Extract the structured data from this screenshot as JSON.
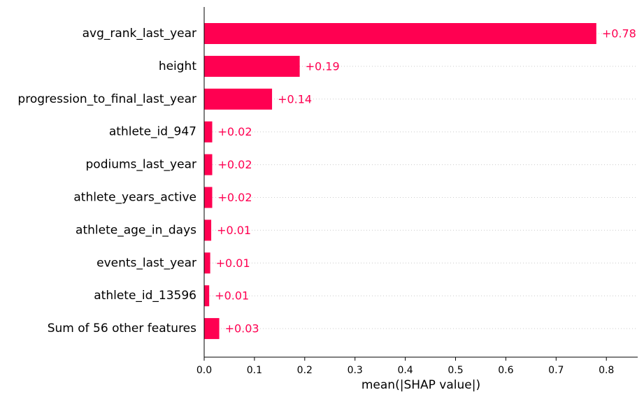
{
  "chart_data": {
    "type": "bar",
    "orientation": "horizontal",
    "title": "",
    "xlabel": "mean(|SHAP value|)",
    "ylabel": "",
    "xlim": [
      0,
      0.86
    ],
    "xticks": [
      "0.0",
      "0.1",
      "0.2",
      "0.3",
      "0.4",
      "0.5",
      "0.6",
      "0.7",
      "0.8"
    ],
    "grid": "dotted horizontal guides per row",
    "categories": [
      "avg_rank_last_year",
      "height",
      "progression_to_final_last_year",
      "athlete_id_947",
      "podiums_last_year",
      "athlete_years_active",
      "athlete_age_in_days",
      "events_last_year",
      "athlete_id_13596",
      "Sum of 56 other features"
    ],
    "values": [
      0.78,
      0.19,
      0.135,
      0.016,
      0.016,
      0.016,
      0.014,
      0.012,
      0.01,
      0.03
    ],
    "value_labels": [
      "+0.78",
      "+0.19",
      "+0.14",
      "+0.02",
      "+0.02",
      "+0.02",
      "+0.01",
      "+0.01",
      "+0.01",
      "+0.03"
    ],
    "colors": {
      "bar": "#ff0051",
      "value_label": "#ff0051",
      "axis": "#000000",
      "grid": "#cccccc"
    }
  }
}
